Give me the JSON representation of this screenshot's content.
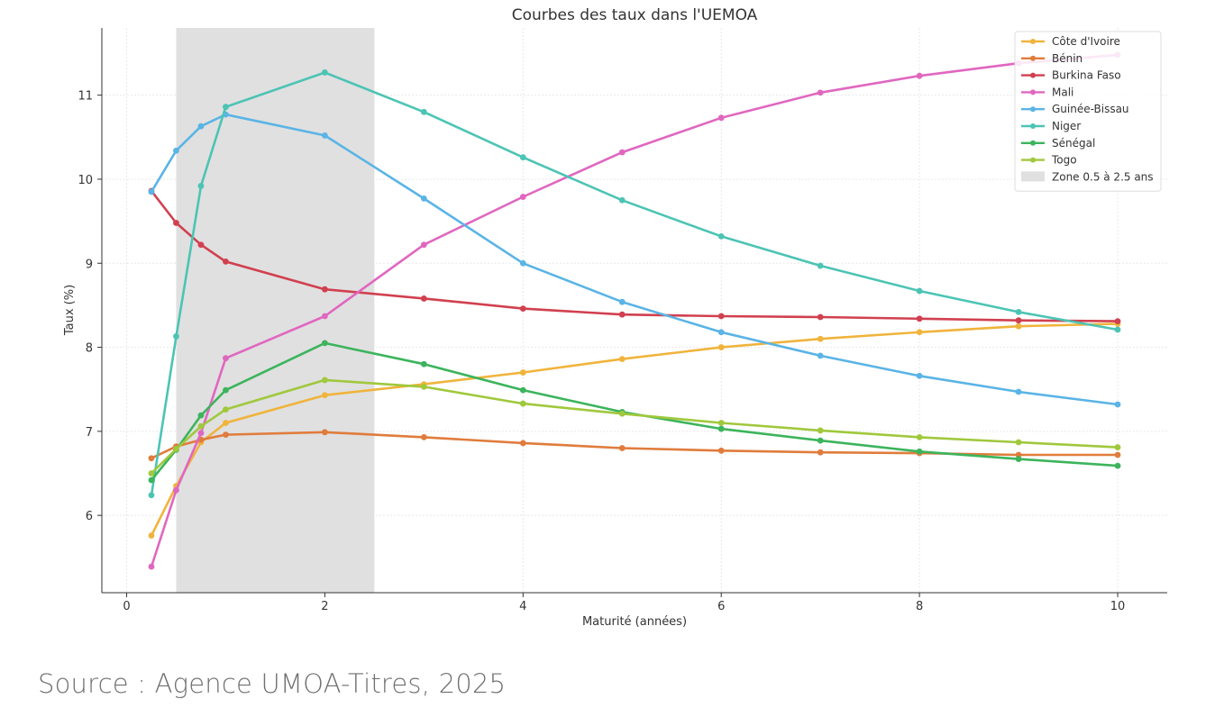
{
  "chart_data": {
    "type": "line",
    "title": "Courbes des taux dans l'UEMOA",
    "xlabel": "Maturité (années)",
    "ylabel": "Taux (%)",
    "xlim": [
      -0.25,
      10.5
    ],
    "ylim": [
      5.08,
      11.8
    ],
    "xticks": [
      0,
      2,
      4,
      6,
      8,
      10
    ],
    "yticks": [
      6,
      7,
      8,
      9,
      10,
      11
    ],
    "grid": true,
    "legend_position": "top-right",
    "x": [
      0.25,
      0.5,
      0.75,
      1,
      2,
      3,
      4,
      5,
      6,
      7,
      8,
      9,
      10
    ],
    "shaded_band": {
      "label": "Zone 0.5 à 2.5 ans",
      "from": 0.5,
      "to": 2.5,
      "color": "#e0e0e0"
    },
    "series": [
      {
        "name": "Côte d'Ivoire",
        "color": "#f0b43c",
        "values": [
          5.76,
          6.35,
          6.87,
          7.1,
          7.43,
          7.56,
          7.7,
          7.86,
          8.0,
          8.1,
          8.18,
          8.25,
          8.28
        ]
      },
      {
        "name": "Bénin",
        "color": "#e07c3c",
        "values": [
          6.68,
          6.82,
          6.9,
          6.96,
          6.99,
          6.93,
          6.86,
          6.8,
          6.77,
          6.75,
          6.74,
          6.72,
          6.72
        ]
      },
      {
        "name": "Burkina Faso",
        "color": "#d1404f",
        "values": [
          9.86,
          9.48,
          9.22,
          9.02,
          8.69,
          8.58,
          8.46,
          8.39,
          8.37,
          8.36,
          8.34,
          8.32,
          8.31
        ]
      },
      {
        "name": "Mali",
        "color": "#e067c0",
        "values": [
          5.39,
          6.3,
          6.98,
          7.87,
          8.37,
          9.22,
          9.79,
          10.32,
          10.73,
          11.03,
          11.23,
          11.38,
          11.48
        ]
      },
      {
        "name": "Guinée-Bissau",
        "color": "#5ab4e6",
        "values": [
          9.85,
          10.34,
          10.63,
          10.77,
          10.52,
          9.77,
          9.0,
          8.54,
          8.18,
          7.9,
          7.66,
          7.47,
          7.32
        ]
      },
      {
        "name": "Niger",
        "color": "#4cc4b4",
        "values": [
          6.24,
          8.13,
          9.92,
          10.86,
          11.27,
          10.8,
          10.26,
          9.75,
          9.32,
          8.97,
          8.67,
          8.42,
          8.21
        ]
      },
      {
        "name": "Sénégal",
        "color": "#3cb45c",
        "values": [
          6.42,
          6.78,
          7.19,
          7.49,
          8.05,
          7.8,
          7.49,
          7.23,
          7.03,
          6.89,
          6.76,
          6.67,
          6.59
        ]
      },
      {
        "name": "Togo",
        "color": "#a0c83c",
        "values": [
          6.5,
          6.79,
          7.06,
          7.26,
          7.61,
          7.53,
          7.33,
          7.21,
          7.1,
          7.01,
          6.93,
          6.87,
          6.81
        ]
      }
    ]
  },
  "source_text": "Source : Agence UMOA-Titres, 2025"
}
